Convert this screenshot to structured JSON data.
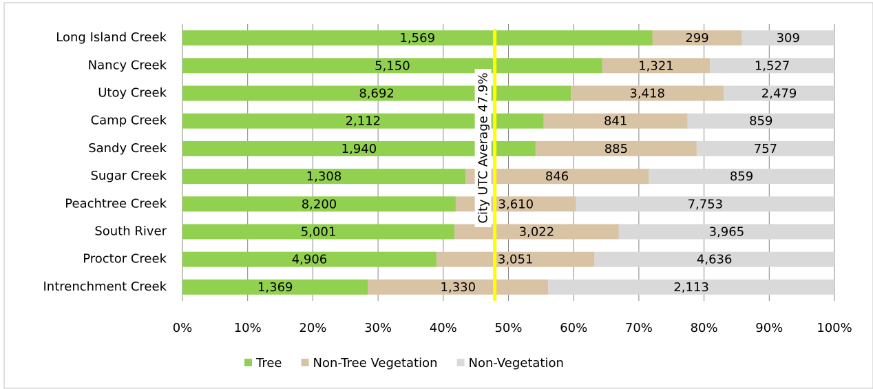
{
  "chart_data": {
    "type": "bar",
    "orientation": "horizontal",
    "stacking": "percent",
    "categories": [
      "Long Island Creek",
      "Nancy Creek",
      "Utoy Creek",
      "Camp Creek",
      "Sandy Creek",
      "Sugar Creek",
      "Peachtree Creek",
      "South River",
      "Proctor Creek",
      "Intrenchment Creek"
    ],
    "series": [
      {
        "name": "Tree",
        "color": "#92d050",
        "values": [
          1569,
          5150,
          8692,
          2112,
          1940,
          1308,
          8200,
          5001,
          4906,
          1369
        ],
        "value_labels": [
          "1,569",
          "5,150",
          "8,692",
          "2,112",
          "1,940",
          "1,308",
          "8,200",
          "5,001",
          "4,906",
          "1,369"
        ]
      },
      {
        "name": "Non-Tree Vegetation",
        "color": "#d9c3a5",
        "values": [
          299,
          1321,
          3418,
          841,
          885,
          846,
          3610,
          3022,
          3051,
          1330
        ],
        "value_labels": [
          "299",
          "1,321",
          "3,418",
          "841",
          "885",
          "846",
          "3,610",
          "3,022",
          "3,051",
          "1,330"
        ]
      },
      {
        "name": "Non-Vegetation",
        "color": "#d9d9d9",
        "values": [
          309,
          1527,
          2479,
          859,
          757,
          859,
          7753,
          3965,
          4636,
          2113
        ],
        "value_labels": [
          "309",
          "1,527",
          "2,479",
          "859",
          "757",
          "859",
          "7,753",
          "3,965",
          "4,636",
          "2,113"
        ]
      }
    ],
    "xlim": [
      0,
      100
    ],
    "xticks": [
      {
        "value": 0,
        "label": "0%"
      },
      {
        "value": 10,
        "label": "10%"
      },
      {
        "value": 20,
        "label": "20%"
      },
      {
        "value": 30,
        "label": "30%"
      },
      {
        "value": 40,
        "label": "40%"
      },
      {
        "value": 50,
        "label": "50%"
      },
      {
        "value": 60,
        "label": "60%"
      },
      {
        "value": 70,
        "label": "70%"
      },
      {
        "value": 80,
        "label": "80%"
      },
      {
        "value": 90,
        "label": "90%"
      },
      {
        "value": 100,
        "label": "100%"
      }
    ],
    "grid": true,
    "legend": "bottom",
    "reference_line": {
      "value": 47.9,
      "text": "City UTC Average 47.9%",
      "color": "#ffff00"
    }
  }
}
